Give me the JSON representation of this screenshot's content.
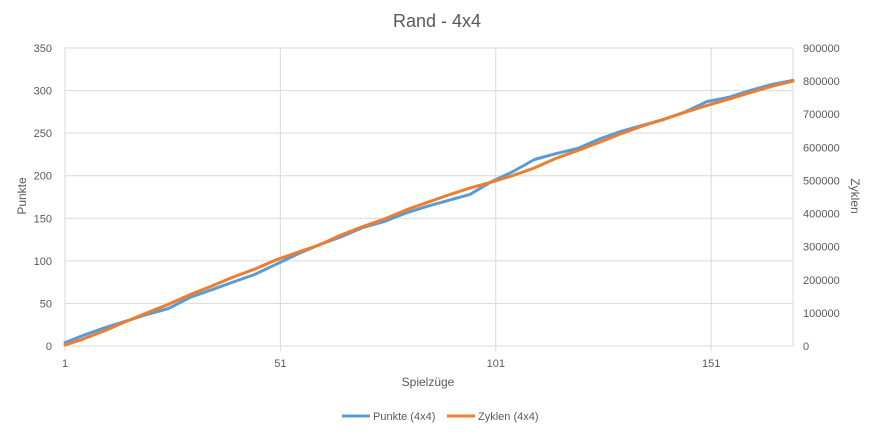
{
  "chart_data": {
    "type": "line",
    "title": "Rand - 4x4",
    "xlabel": "Spielzüge",
    "ylabel": "Punkte",
    "y2label": "Zyklen",
    "xlim": [
      1,
      170
    ],
    "ylim": [
      0,
      350
    ],
    "y2lim": [
      0,
      900000
    ],
    "x_ticks": [
      1,
      51,
      101,
      151
    ],
    "y_ticks": [
      0,
      50,
      100,
      150,
      200,
      250,
      300,
      350
    ],
    "y2_ticks": [
      0,
      100000,
      200000,
      300000,
      400000,
      500000,
      600000,
      700000,
      800000,
      900000
    ],
    "grid": true,
    "legend": "bottom",
    "series": [
      {
        "name": "Punkte (4x4)",
        "axis": "left",
        "color": "#5b9bd5",
        "x": [
          1,
          5,
          10,
          15,
          20,
          25,
          30,
          35,
          40,
          45,
          50,
          55,
          60,
          65,
          70,
          75,
          80,
          85,
          90,
          95,
          100,
          105,
          110,
          115,
          120,
          125,
          130,
          135,
          140,
          145,
          150,
          155,
          160,
          165,
          170
        ],
        "values": [
          4,
          12,
          21,
          29,
          37,
          44,
          57,
          66,
          75,
          84,
          96,
          108,
          119,
          128,
          139,
          146,
          156,
          164,
          171,
          178,
          193,
          205,
          219,
          226,
          232,
          243,
          252,
          259,
          266,
          275,
          287,
          292,
          300,
          307,
          312
        ]
      },
      {
        "name": "Zyklen (4x4)",
        "axis": "right",
        "color": "#ed7d31",
        "x": [
          1,
          5,
          10,
          15,
          20,
          25,
          30,
          35,
          40,
          45,
          50,
          55,
          60,
          65,
          70,
          75,
          80,
          85,
          90,
          95,
          100,
          105,
          110,
          115,
          120,
          125,
          130,
          135,
          140,
          145,
          150,
          155,
          160,
          165,
          170
        ],
        "values": [
          3000,
          20000,
          45000,
          73000,
          100000,
          126000,
          155000,
          181000,
          208000,
          232000,
          260000,
          283000,
          305000,
          335000,
          360000,
          383000,
          410000,
          433000,
          456000,
          477000,
          495000,
          515000,
          538000,
          567000,
          590000,
          615000,
          641000,
          664000,
          685000,
          706000,
          726000,
          745000,
          765000,
          784000,
          800000
        ]
      }
    ]
  }
}
